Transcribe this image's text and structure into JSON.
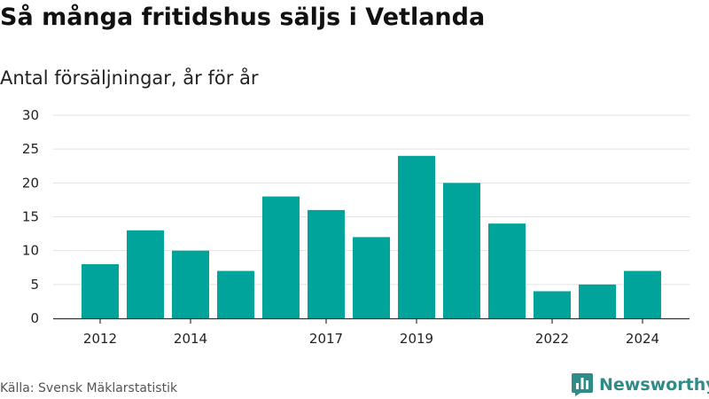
{
  "title": "Så många fritidshus säljs i Vetlanda",
  "subtitle": "Antal försäljningar, år för år",
  "source": "Källa: Svensk Mäklarstatistik",
  "brand": {
    "name": "Newsworthy",
    "logo_icon": "bar-chart-pin-icon",
    "color": "#2e8b87"
  },
  "chart_data": {
    "type": "bar",
    "title": "Så många fritidshus säljs i Vetlanda",
    "subtitle": "Antal försäljningar, år för år",
    "categories": [
      "2012",
      "2013",
      "2014",
      "2015",
      "2016",
      "2017",
      "2018",
      "2019",
      "2020",
      "2021",
      "2022",
      "2023",
      "2024"
    ],
    "values": [
      8,
      13,
      10,
      7,
      18,
      16,
      12,
      24,
      20,
      14,
      4,
      5,
      7
    ],
    "x_tick_labels": [
      "2012",
      "2014",
      "2017",
      "2019",
      "2022",
      "2024"
    ],
    "y_ticks": [
      0,
      5,
      10,
      15,
      20,
      25,
      30
    ],
    "ylim": [
      0,
      30
    ],
    "xlabel": "",
    "ylabel": "",
    "grid": true,
    "bar_color": "#00a49a",
    "grid_color": "#e3e3e3",
    "axis_color": "#333333"
  }
}
